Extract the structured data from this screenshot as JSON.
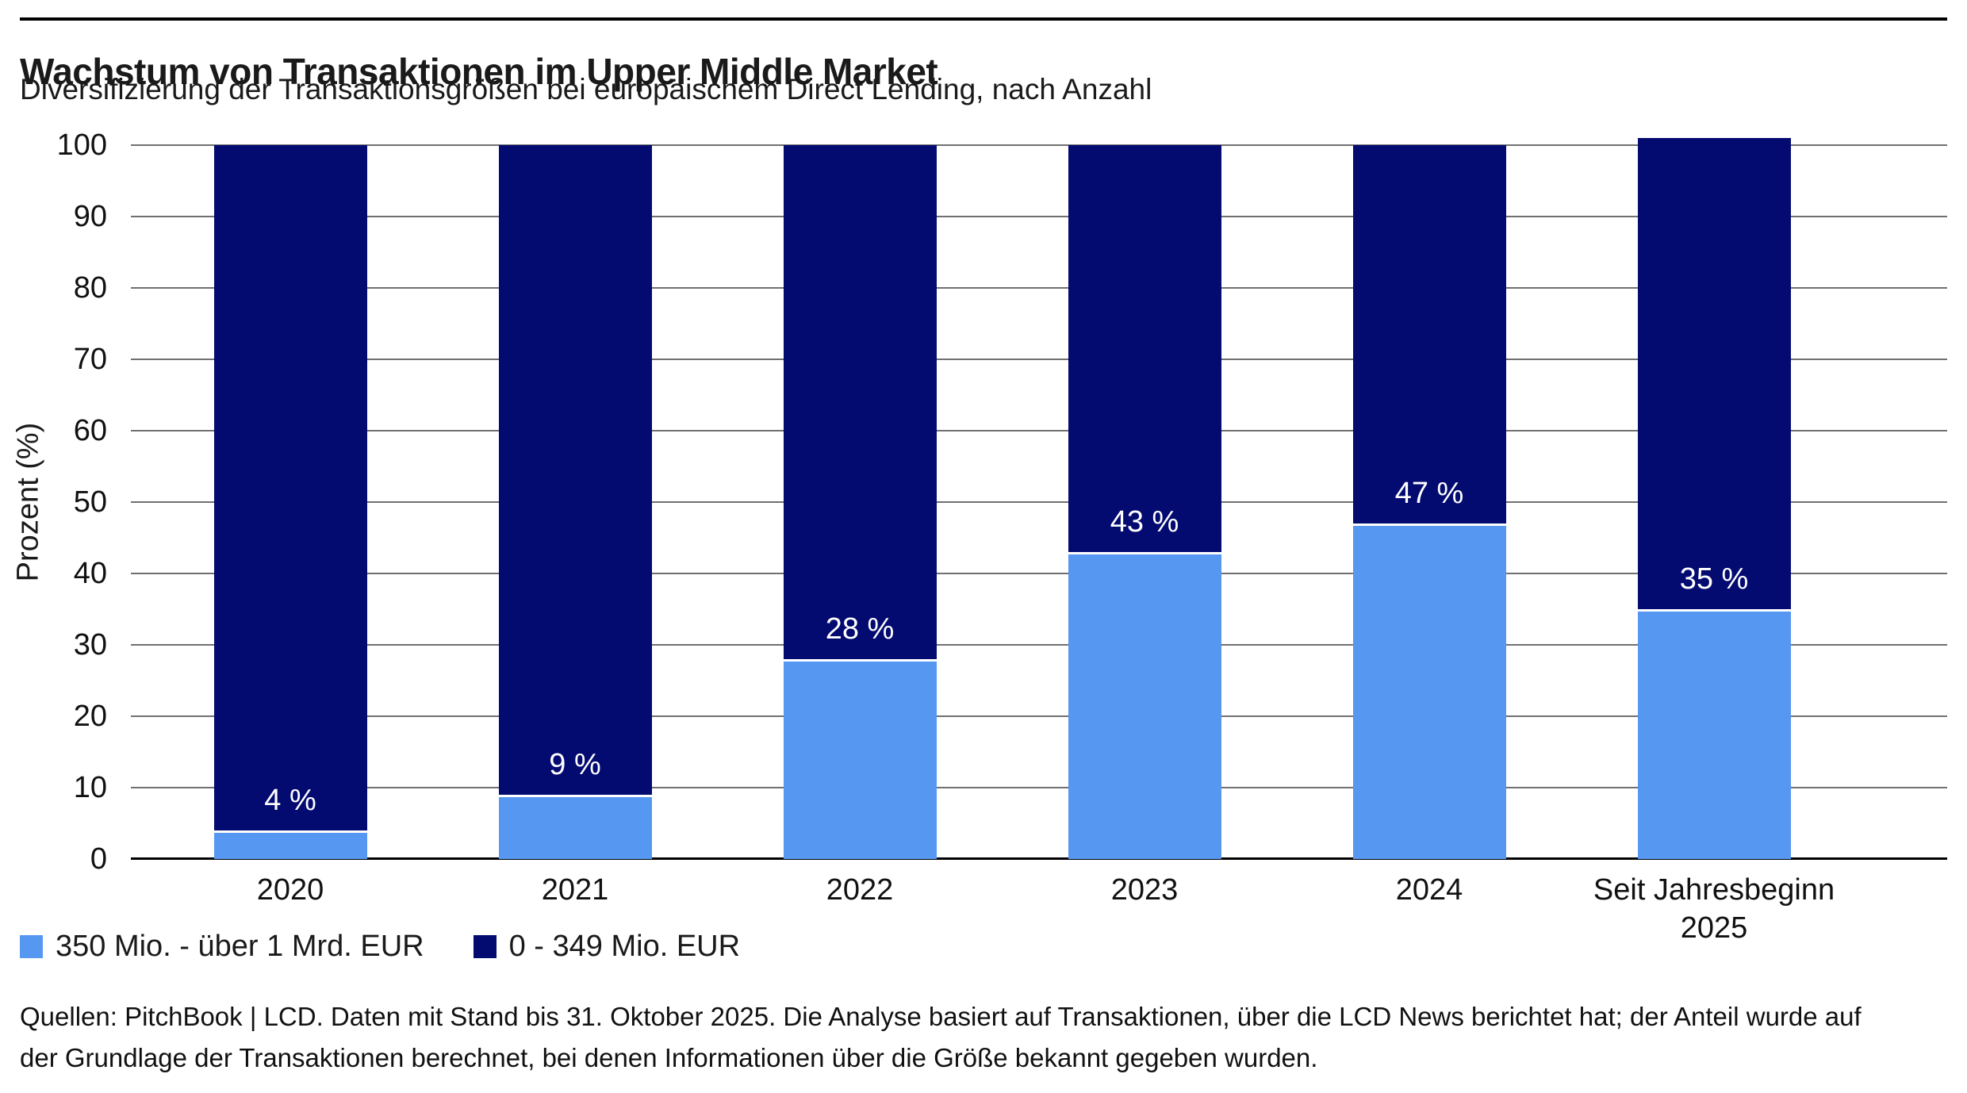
{
  "page": {
    "title": "Wachstum von Transaktionen im Upper Middle Market",
    "subtitle": "Diversifizierung der Transaktionsgrößen bei europäischem Direct Lending, nach Anzahl",
    "source_lines": [
      "Quellen: PitchBook | LCD. Daten mit Stand bis 31. Oktober 2025. Die Analyse basiert auf Transaktionen, über die LCD News berichtet hat; der Anteil wurde auf",
      "der Grundlage der Transaktionen berechnet, bei denen Informationen über die Größe bekannt gegeben wurden."
    ]
  },
  "chart_data": {
    "type": "bar",
    "stacked": true,
    "title": "Wachstum von Transaktionen im Upper Middle Market",
    "subtitle": "Diversifizierung der Transaktionsgrößen bei europäischem Direct Lending, nach Anzahl",
    "xlabel": "",
    "ylabel": "Prozent (%)",
    "ylim": [
      0,
      100
    ],
    "yticks": [
      0,
      10,
      20,
      30,
      40,
      50,
      60,
      70,
      80,
      90,
      100
    ],
    "grid": "horizontal",
    "legend_position": "bottom-left",
    "categories": [
      "2020",
      "2021",
      "2022",
      "2023",
      "2024",
      "Seit Jahresbeginn\n2025"
    ],
    "series": [
      {
        "name": "350 Mio. - über 1 Mrd. EUR",
        "color": "#5697f2",
        "values": [
          4,
          9,
          28,
          43,
          47,
          35
        ]
      },
      {
        "name": "0 - 349 Mio. EUR",
        "color": "#030a70",
        "values": [
          96,
          91,
          72,
          57,
          53,
          66
        ]
      }
    ],
    "bar_labels": [
      "4 %",
      "9 %",
      "28 %",
      "43 %",
      "47 %",
      "35 %"
    ],
    "bar_label_color": "#ffffff",
    "colors": {
      "gridline": "#707070",
      "axis_line": "#000000",
      "text": "#1a1a1a"
    }
  }
}
